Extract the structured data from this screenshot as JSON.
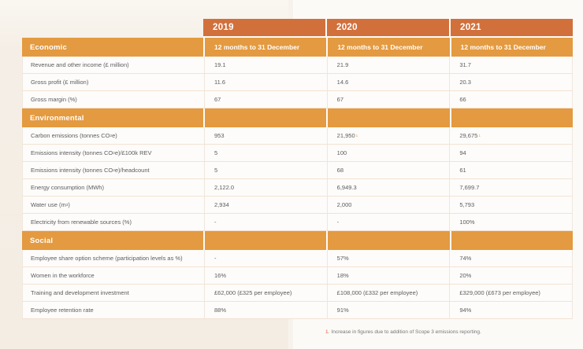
{
  "colors": {
    "accent_dark": "#D2703C",
    "accent_light": "#E49A40",
    "page_left_bg": "#F3EDE4",
    "page_right_bg": "#FCFAF7",
    "data_text": "#5C5C5E",
    "row_divider": "#F3E2D2",
    "footnote_marker": "#D8623C",
    "cell_footnote_ref": "#DFA468"
  },
  "footnote": {
    "marker": "1.",
    "text": "Increase in figures due to addition of Scope 3 emissions reporting."
  },
  "table": {
    "years": [
      "2019",
      "2020",
      "2021"
    ],
    "rows": [
      {
        "type": "section",
        "label": [
          {
            "t": "Economic"
          }
        ],
        "cells": [
          "12 months to 31 December",
          "12 months to 31 December",
          "12 months to 31 December"
        ]
      },
      {
        "type": "data",
        "label": [
          {
            "t": "Revenue and other income (£ million)"
          }
        ],
        "cells": [
          "19.1",
          "21.9",
          "31.7"
        ]
      },
      {
        "type": "data",
        "label": [
          {
            "t": "Gross profit (£ million)"
          }
        ],
        "cells": [
          "11.6",
          "14.6",
          "20.3"
        ]
      },
      {
        "type": "data",
        "label": [
          {
            "t": "Gross margin (%)"
          }
        ],
        "cells": [
          "67",
          "67",
          "66"
        ]
      },
      {
        "type": "section",
        "label": [
          {
            "t": "Environmental"
          }
        ],
        "cells": [
          "",
          "",
          ""
        ]
      },
      {
        "type": "data",
        "label": [
          {
            "t": "Carbon emissions (tonnes CO"
          },
          {
            "sub": "2"
          },
          {
            "t": "e)"
          }
        ],
        "cells": [
          "953",
          {
            "t": "21,950",
            "sup": "1"
          },
          {
            "t": "29,675",
            "sup": "1"
          }
        ]
      },
      {
        "type": "data",
        "label": [
          {
            "t": "Emissions intensity (tonnes CO"
          },
          {
            "sub": "2"
          },
          {
            "t": "e)/£100k REV"
          }
        ],
        "cells": [
          "5",
          "100",
          "94"
        ]
      },
      {
        "type": "data",
        "label": [
          {
            "t": "Emissions intensity (tonnes CO"
          },
          {
            "sub": "2"
          },
          {
            "t": "e)/headcount"
          }
        ],
        "cells": [
          "5",
          "68",
          "61"
        ]
      },
      {
        "type": "data",
        "label": [
          {
            "t": "Energy consumption (MWh)"
          }
        ],
        "cells": [
          "2,122.0",
          "6,949.3",
          "7,699.7"
        ]
      },
      {
        "type": "data",
        "label": [
          {
            "t": "Water use (m"
          },
          {
            "sup": "3"
          },
          {
            "t": ")"
          }
        ],
        "cells": [
          "2,934",
          "2,000",
          "5,793"
        ]
      },
      {
        "type": "data",
        "label": [
          {
            "t": "Electricity from renewable sources (%)"
          }
        ],
        "cells": [
          "-",
          "-",
          "100%"
        ]
      },
      {
        "type": "section",
        "label": [
          {
            "t": "Social"
          }
        ],
        "cells": [
          "",
          "",
          ""
        ]
      },
      {
        "type": "data",
        "label": [
          {
            "t": "Employee share option scheme (participation levels as %)"
          }
        ],
        "cells": [
          "-",
          "57%",
          "74%"
        ]
      },
      {
        "type": "data",
        "label": [
          {
            "t": "Women in the workforce"
          }
        ],
        "cells": [
          "16%",
          "18%",
          "20%"
        ]
      },
      {
        "type": "data",
        "label": [
          {
            "t": "Training and development investment"
          }
        ],
        "cells": [
          "£62,000 (£325 per employee)",
          "£108,000 (£332 per employee)",
          "£329,000 (£673 per employee)"
        ]
      },
      {
        "type": "data",
        "label": [
          {
            "t": "Employee retention rate"
          }
        ],
        "cells": [
          "88%",
          "91%",
          "94%"
        ]
      }
    ]
  }
}
